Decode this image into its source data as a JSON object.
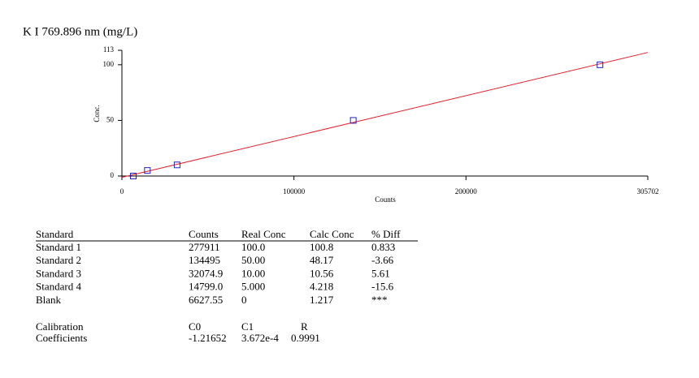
{
  "chart_data": {
    "type": "scatter",
    "title": "K I 769.896 nm (mg/L)",
    "x_label": "Counts",
    "y_label": "Conc.",
    "x": [
      277911,
      134495,
      32074.9,
      14799.0,
      6627.55
    ],
    "series": [
      {
        "values": [
          100.0,
          50.0,
          10.0,
          5.0,
          0
        ],
        "color": "#2020c0"
      }
    ],
    "fit_color": "#e8202a",
    "xlim": [
      0,
      305702
    ],
    "xticks": [
      0,
      100000,
      200000,
      305702
    ],
    "ylim": [
      0,
      113
    ],
    "yticks": [
      0,
      50,
      100,
      113
    ]
  },
  "table": {
    "header": [
      "Standard",
      "Counts",
      "Real Conc",
      "Calc Conc",
      "% Diff"
    ],
    "rows": [
      [
        "Standard 1",
        "277911",
        "100.0",
        "100.8",
        "0.833"
      ],
      [
        "Standard 2",
        "134495",
        "50.00",
        "48.17",
        "-3.66"
      ],
      [
        "Standard 3",
        "32074.9",
        "10.00",
        "10.56",
        "5.61"
      ],
      [
        "Standard 4",
        "14799.0",
        "5.000",
        "4.218",
        "-15.6"
      ],
      [
        "Blank",
        "6627.55",
        "0",
        "1.217",
        "***"
      ]
    ]
  },
  "calibration": {
    "label": [
      "Calibration",
      "Coefficients"
    ],
    "header": [
      "C0",
      "C1",
      "R"
    ],
    "values": [
      "-1.21652",
      "3.672e-4",
      "0.9991"
    ]
  }
}
